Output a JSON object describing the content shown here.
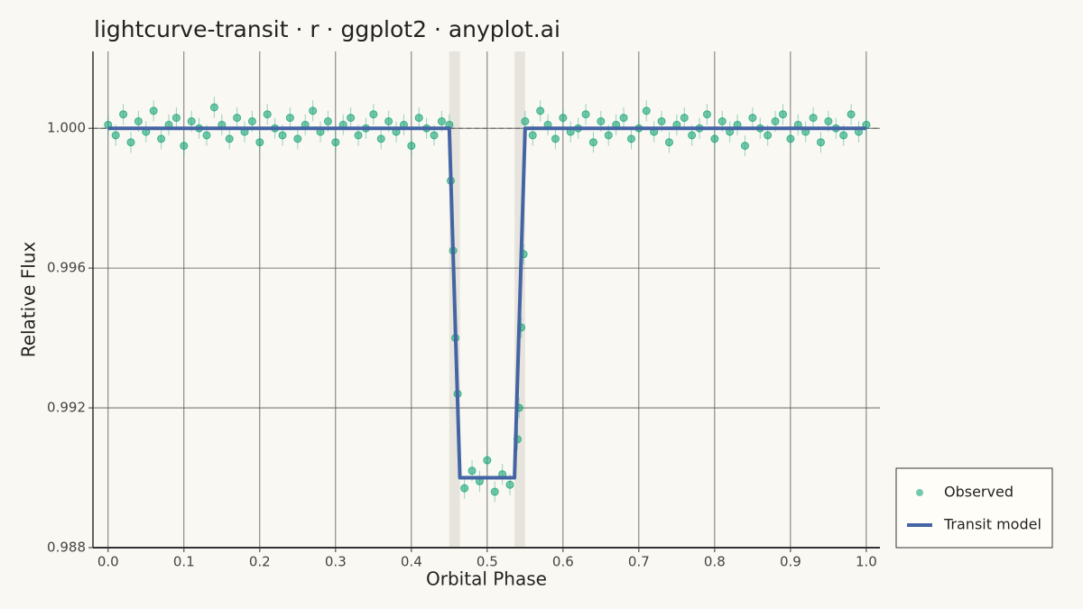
{
  "chart_data": {
    "type": "scatter",
    "title": "lightcurve-transit · r · ggplot2 · anyplot.ai",
    "x_label": "Orbital Phase",
    "y_label": "Relative Flux",
    "xlim": [
      -0.02,
      1.018
    ],
    "ylim": [
      0.988,
      1.0022
    ],
    "xticks": [
      {
        "value": 0,
        "label": "0.0"
      },
      0.1,
      0.2,
      0.3,
      0.4,
      0.5,
      0.6,
      0.7,
      0.8,
      0.9,
      {
        "value": 1,
        "label": "1.0"
      }
    ],
    "yticks": [
      0.988,
      0.992,
      0.996,
      {
        "value": 1,
        "label": "1.000"
      }
    ],
    "grid": true,
    "reference_line": 1,
    "shaded_regions": [
      [
        0.45,
        0.464
      ],
      [
        0.536,
        0.55
      ]
    ],
    "shade_color": "#e6e4dc",
    "legend_position": "bottom-right",
    "series": [
      {
        "name": "Observed",
        "type": "scatter",
        "color": "#1aa67a",
        "yerr": 0.0003,
        "x": [
          0,
          0.01,
          0.02,
          0.03,
          0.04,
          0.05,
          0.06,
          0.07,
          0.08,
          0.09,
          0.1,
          0.11,
          0.12,
          0.13,
          0.14,
          0.15,
          0.16,
          0.17,
          0.18,
          0.19,
          0.2,
          0.21,
          0.22,
          0.23,
          0.24,
          0.25,
          0.26,
          0.27,
          0.28,
          0.29,
          0.3,
          0.31,
          0.32,
          0.33,
          0.34,
          0.35,
          0.36,
          0.37,
          0.38,
          0.39,
          0.4,
          0.41,
          0.42,
          0.43,
          0.44,
          0.45,
          0.452,
          0.455,
          0.458,
          0.461,
          0.47,
          0.48,
          0.49,
          0.5,
          0.51,
          0.52,
          0.53,
          0.54,
          0.542,
          0.545,
          0.548,
          0.55,
          0.56,
          0.57,
          0.58,
          0.59,
          0.6,
          0.61,
          0.62,
          0.63,
          0.64,
          0.65,
          0.66,
          0.67,
          0.68,
          0.69,
          0.7,
          0.71,
          0.72,
          0.73,
          0.74,
          0.75,
          0.76,
          0.77,
          0.78,
          0.79,
          0.8,
          0.81,
          0.82,
          0.83,
          0.84,
          0.85,
          0.86,
          0.87,
          0.88,
          0.89,
          0.9,
          0.91,
          0.92,
          0.93,
          0.94,
          0.95,
          0.96,
          0.97,
          0.98,
          0.99,
          1
        ],
        "values": [
          1.0001,
          0.9998,
          1.0004,
          0.9996,
          1.0002,
          0.9999,
          1.0005,
          0.9997,
          1.0001,
          1.0003,
          0.9995,
          1.0002,
          1.0,
          0.9998,
          1.0006,
          1.0001,
          0.9997,
          1.0003,
          0.9999,
          1.0002,
          0.9996,
          1.0004,
          1.0,
          0.9998,
          1.0003,
          0.9997,
          1.0001,
          1.0005,
          0.9999,
          1.0002,
          0.9996,
          1.0001,
          1.0003,
          0.9998,
          1.0,
          1.0004,
          0.9997,
          1.0002,
          0.9999,
          1.0001,
          0.9995,
          1.0003,
          1.0,
          0.9998,
          1.0002,
          1.0001,
          0.9985,
          0.9965,
          0.994,
          0.9924,
          0.9897,
          0.9902,
          0.9899,
          0.9905,
          0.9896,
          0.9901,
          0.9898,
          0.9911,
          0.992,
          0.9943,
          0.9964,
          1.0002,
          0.9998,
          1.0005,
          1.0001,
          0.9997,
          1.0003,
          0.9999,
          1.0,
          1.0004,
          0.9996,
          1.0002,
          0.9998,
          1.0001,
          1.0003,
          0.9997,
          1.0,
          1.0005,
          0.9999,
          1.0002,
          0.9996,
          1.0001,
          1.0003,
          0.9998,
          1.0,
          1.0004,
          0.9997,
          1.0002,
          0.9999,
          1.0001,
          0.9995,
          1.0003,
          1.0,
          0.9998,
          1.0002,
          1.0004,
          0.9997,
          1.0001,
          0.9999,
          1.0003,
          0.9996,
          1.0002,
          1.0,
          0.9998,
          1.0004,
          0.9999,
          1.0001
        ]
      },
      {
        "name": "Transit model",
        "type": "line",
        "color": "#4464a4",
        "x": [
          0,
          0.45,
          0.464,
          0.536,
          0.55,
          1
        ],
        "values": [
          1,
          1,
          0.99,
          0.99,
          1,
          1
        ]
      }
    ]
  }
}
